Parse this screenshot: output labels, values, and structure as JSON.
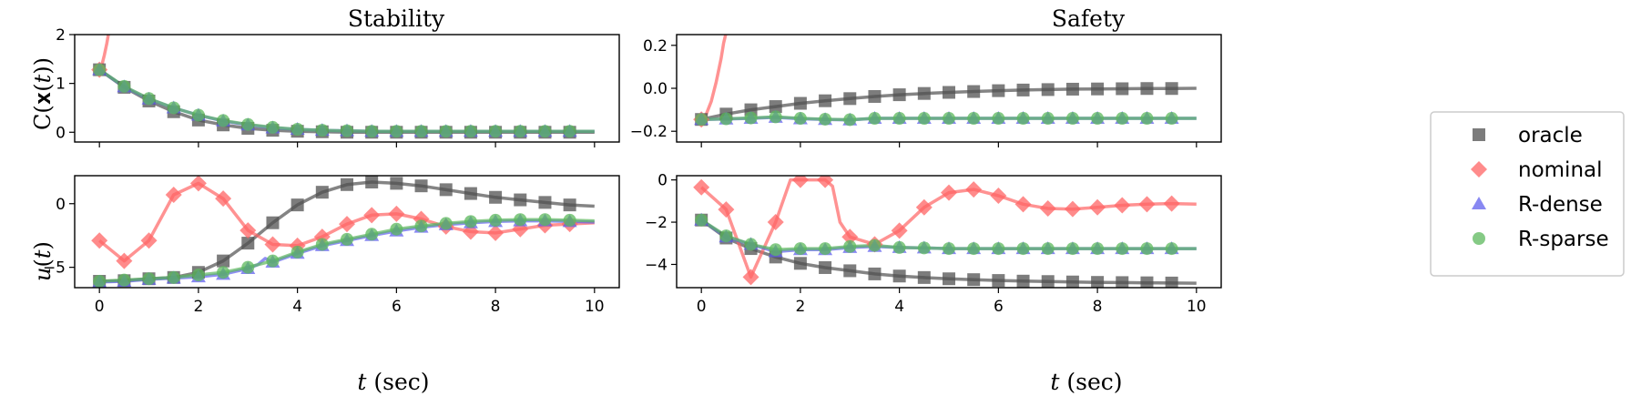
{
  "chart_data": {
    "type": "line",
    "title_left": "Stability",
    "title_right": "Safety",
    "xlabel": "t (sec)",
    "xlabel_italic": "t",
    "xlabel_rest": " (sec)",
    "xlim": [
      -0.5,
      10.5
    ],
    "xticks": [
      0,
      2,
      4,
      6,
      8,
      10
    ],
    "legend": {
      "placement": "right",
      "entries": [
        {
          "key": "oracle",
          "label": "oracle"
        },
        {
          "key": "nominal",
          "label": "nominal"
        },
        {
          "key": "rdense",
          "label": "R-dense"
        },
        {
          "key": "rsparse",
          "label": "R-sparse"
        }
      ]
    },
    "series_styles": {
      "oracle": {
        "color": "#505050",
        "marker": "square"
      },
      "nominal": {
        "color": "#ff6464",
        "marker": "diamond"
      },
      "rdense": {
        "color": "#6060ee",
        "marker": "triangle"
      },
      "rsparse": {
        "color": "#5cb85c",
        "marker": "circle"
      }
    },
    "panels": [
      {
        "id": "stab_c",
        "ylabel": "C(x(t))",
        "ylim": [
          -0.2,
          2
        ],
        "yticks": [
          0,
          1,
          2
        ],
        "series": {
          "oracle": {
            "x": [
              0,
              0.5,
              1,
              1.5,
              2,
              2.5,
              3,
              3.5,
              4,
              4.5,
              5,
              5.5,
              6,
              6.5,
              7,
              7.5,
              8,
              8.5,
              9,
              9.5,
              10
            ],
            "y": [
              1.28,
              0.92,
              0.64,
              0.42,
              0.25,
              0.15,
              0.08,
              0.04,
              0.02,
              0.01,
              0.0,
              0.0,
              0.0,
              0.0,
              0.0,
              0.0,
              0.0,
              0.0,
              0.0,
              0.0,
              0.0
            ]
          },
          "nominal": {
            "x": [
              0,
              0.05,
              0.1,
              0.15,
              0.18,
              0.2
            ],
            "y": [
              1.28,
              1.38,
              1.58,
              1.82,
              2.0,
              2.1
            ]
          },
          "rdense": {
            "x": [
              0,
              0.5,
              1,
              1.5,
              2,
              2.5,
              3,
              3.5,
              4,
              4.5,
              5,
              5.5,
              6,
              6.5,
              7,
              7.5,
              8,
              8.5,
              9,
              9.5,
              10
            ],
            "y": [
              1.28,
              0.93,
              0.68,
              0.5,
              0.35,
              0.23,
              0.15,
              0.09,
              0.06,
              0.04,
              0.03,
              0.02,
              0.02,
              0.02,
              0.02,
              0.02,
              0.02,
              0.02,
              0.02,
              0.02,
              0.02
            ]
          },
          "rsparse": {
            "x": [
              0,
              0.5,
              1,
              1.5,
              2,
              2.5,
              3,
              3.5,
              4,
              4.5,
              5,
              5.5,
              6,
              6.5,
              7,
              7.5,
              8,
              8.5,
              9,
              9.5,
              10
            ],
            "y": [
              1.28,
              0.94,
              0.69,
              0.5,
              0.35,
              0.24,
              0.16,
              0.1,
              0.06,
              0.04,
              0.03,
              0.02,
              0.02,
              0.02,
              0.02,
              0.02,
              0.02,
              0.02,
              0.02,
              0.02,
              0.02
            ]
          }
        }
      },
      {
        "id": "safe_c",
        "ylabel": "",
        "ylim": [
          -0.25,
          0.25
        ],
        "yticks": [
          -0.2,
          0.0,
          0.2
        ],
        "ytick_labels": [
          "−0.2",
          "0.0",
          "0.2"
        ],
        "series": {
          "oracle": {
            "x": [
              0,
              0.5,
              1,
              1.5,
              2,
              2.5,
              3,
              3.5,
              4,
              4.5,
              5,
              5.5,
              6,
              6.5,
              7,
              7.5,
              8,
              8.5,
              9,
              9.5,
              10
            ],
            "y": [
              -0.145,
              -0.12,
              -0.1,
              -0.085,
              -0.07,
              -0.058,
              -0.048,
              -0.038,
              -0.03,
              -0.024,
              -0.019,
              -0.015,
              -0.011,
              -0.008,
              -0.006,
              -0.004,
              -0.003,
              -0.002,
              -0.001,
              -0.001,
              0.0
            ]
          },
          "nominal": {
            "x": [
              0,
              0.1,
              0.2,
              0.3,
              0.4,
              0.45,
              0.5
            ],
            "y": [
              -0.145,
              -0.12,
              -0.06,
              0.03,
              0.14,
              0.21,
              0.26
            ]
          },
          "rdense": {
            "x": [
              0,
              0.5,
              1,
              1.5,
              2,
              2.5,
              3,
              3.5,
              4,
              4.5,
              5,
              5.5,
              6,
              6.5,
              7,
              7.5,
              8,
              8.5,
              9,
              9.5,
              10
            ],
            "y": [
              -0.145,
              -0.143,
              -0.14,
              -0.135,
              -0.142,
              -0.145,
              -0.147,
              -0.14,
              -0.14,
              -0.14,
              -0.14,
              -0.14,
              -0.14,
              -0.14,
              -0.14,
              -0.14,
              -0.14,
              -0.14,
              -0.14,
              -0.14,
              -0.14
            ]
          },
          "rsparse": {
            "x": [
              0,
              0.5,
              1,
              1.5,
              2,
              2.5,
              3,
              3.5,
              4,
              4.5,
              5,
              5.5,
              6,
              6.5,
              7,
              7.5,
              8,
              8.5,
              9,
              9.5,
              10
            ],
            "y": [
              -0.145,
              -0.142,
              -0.138,
              -0.133,
              -0.14,
              -0.144,
              -0.146,
              -0.14,
              -0.14,
              -0.14,
              -0.14,
              -0.14,
              -0.14,
              -0.14,
              -0.14,
              -0.14,
              -0.14,
              -0.14,
              -0.14,
              -0.14,
              -0.14
            ]
          }
        }
      },
      {
        "id": "stab_u",
        "ylabel": "u(t)",
        "ylim": [
          -6.6,
          2.2
        ],
        "yticks": [
          -5,
          0
        ],
        "ytick_labels": [
          "−5",
          "0"
        ],
        "series": {
          "oracle": {
            "x": [
              0,
              0.5,
              1,
              1.5,
              2,
              2.5,
              3,
              3.5,
              4,
              4.5,
              5,
              5.5,
              6,
              6.5,
              7,
              7.5,
              8,
              8.5,
              9,
              9.5,
              10
            ],
            "y": [
              -6.1,
              -6.05,
              -5.9,
              -5.8,
              -5.4,
              -4.5,
              -3.1,
              -1.5,
              -0.1,
              0.9,
              1.5,
              1.7,
              1.6,
              1.4,
              1.1,
              0.8,
              0.5,
              0.3,
              0.1,
              -0.1,
              -0.2
            ]
          },
          "nominal": {
            "x": [
              0,
              0.5,
              1,
              1.5,
              2,
              2.5,
              3,
              3.5,
              4,
              4.5,
              5,
              5.5,
              6,
              6.5,
              7,
              7.5,
              8,
              8.5,
              9,
              9.5,
              10
            ],
            "y": [
              -2.9,
              -4.5,
              -2.9,
              0.7,
              1.6,
              0.4,
              -2.1,
              -3.2,
              -3.3,
              -2.6,
              -1.6,
              -0.9,
              -0.8,
              -1.2,
              -1.8,
              -2.2,
              -2.3,
              -2.0,
              -1.7,
              -1.6,
              -1.5
            ]
          },
          "rdense": {
            "x": [
              0,
              0.5,
              1,
              1.5,
              2,
              2.5,
              3,
              3.2,
              3.35,
              3.5,
              4,
              4.5,
              5,
              5.5,
              6,
              6.5,
              7,
              7.5,
              8,
              8.5,
              9,
              9.5,
              10
            ],
            "y": [
              -6.15,
              -6.1,
              -5.95,
              -5.85,
              -5.75,
              -5.55,
              -5.1,
              -4.8,
              -4.3,
              -4.6,
              -3.9,
              -3.3,
              -2.9,
              -2.5,
              -2.15,
              -1.85,
              -1.65,
              -1.5,
              -1.4,
              -1.35,
              -1.35,
              -1.4,
              -1.45
            ]
          },
          "rsparse": {
            "x": [
              0,
              0.5,
              1,
              1.5,
              2,
              2.5,
              3,
              3.5,
              4,
              4.5,
              5,
              5.5,
              6,
              6.5,
              7,
              7.5,
              8,
              8.5,
              9,
              9.5,
              10
            ],
            "y": [
              -6.1,
              -6.0,
              -5.9,
              -5.8,
              -5.6,
              -5.4,
              -5.0,
              -4.5,
              -3.8,
              -3.2,
              -2.8,
              -2.4,
              -2.0,
              -1.75,
              -1.55,
              -1.4,
              -1.3,
              -1.25,
              -1.25,
              -1.3,
              -1.35
            ]
          }
        }
      },
      {
        "id": "safe_u",
        "ylabel": "",
        "ylim": [
          -5.1,
          0.2
        ],
        "yticks": [
          -4,
          -2,
          0
        ],
        "ytick_labels": [
          "−4",
          "−2",
          "0"
        ],
        "series": {
          "oracle": {
            "x": [
              0,
              0.5,
              1,
              1.5,
              2,
              2.5,
              3,
              3.5,
              4,
              4.5,
              5,
              5.5,
              6,
              6.5,
              7,
              7.5,
              8,
              8.5,
              9,
              9.5,
              10
            ],
            "y": [
              -1.9,
              -2.75,
              -3.25,
              -3.65,
              -3.95,
              -4.15,
              -4.3,
              -4.45,
              -4.55,
              -4.62,
              -4.68,
              -4.72,
              -4.76,
              -4.79,
              -4.81,
              -4.83,
              -4.85,
              -4.86,
              -4.87,
              -4.88,
              -4.89
            ]
          },
          "nominal": {
            "x": [
              0,
              0.5,
              1,
              1.5,
              1.8,
              2,
              2.5,
              2.65,
              2.8,
              3,
              3.5,
              4,
              4.5,
              5,
              5.5,
              6,
              6.5,
              7,
              7.5,
              8,
              8.5,
              9,
              9.5,
              10
            ],
            "y": [
              -0.35,
              -1.4,
              -4.6,
              -2.0,
              0.0,
              0.0,
              0.0,
              -0.3,
              -2.0,
              -2.7,
              -3.05,
              -2.4,
              -1.3,
              -0.6,
              -0.45,
              -0.75,
              -1.15,
              -1.35,
              -1.38,
              -1.3,
              -1.2,
              -1.15,
              -1.12,
              -1.15
            ]
          },
          "rdense": {
            "x": [
              0,
              0.5,
              1,
              1.5,
              2,
              2.5,
              3,
              3.5,
              4,
              4.5,
              5,
              5.5,
              6,
              6.5,
              7,
              7.5,
              8,
              8.5,
              9,
              9.5,
              10
            ],
            "y": [
              -1.9,
              -2.7,
              -3.05,
              -3.4,
              -3.3,
              -3.3,
              -3.2,
              -3.15,
              -3.2,
              -3.22,
              -3.25,
              -3.25,
              -3.25,
              -3.25,
              -3.25,
              -3.25,
              -3.25,
              -3.25,
              -3.25,
              -3.25,
              -3.25
            ]
          },
          "rsparse": {
            "x": [
              0,
              0.5,
              1,
              1.5,
              2,
              2.5,
              3,
              3.5,
              4,
              4.5,
              5,
              5.5,
              6,
              6.5,
              7,
              7.5,
              8,
              8.5,
              9,
              9.5,
              10
            ],
            "y": [
              -1.9,
              -2.65,
              -3.05,
              -3.3,
              -3.25,
              -3.25,
              -3.15,
              -3.1,
              -3.2,
              -3.22,
              -3.25,
              -3.25,
              -3.25,
              -3.25,
              -3.25,
              -3.25,
              -3.25,
              -3.25,
              -3.25,
              -3.25,
              -3.25
            ]
          }
        }
      }
    ]
  }
}
